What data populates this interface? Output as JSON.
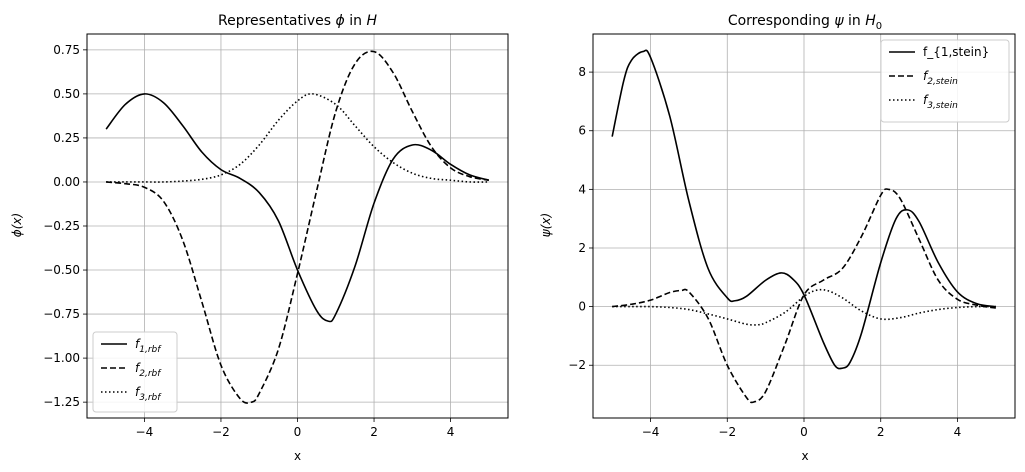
{
  "chart_data": [
    {
      "type": "line",
      "title": "Representatives ϕ in H",
      "xlabel": "x",
      "ylabel": "ϕ(x)",
      "xlim": [
        -5.5,
        5.5
      ],
      "ylim": [
        -1.34,
        0.84
      ],
      "xticks": [
        -4,
        -2,
        0,
        2,
        4
      ],
      "xtick_labels": [
        "−4",
        "−2",
        "0",
        "2",
        "4"
      ],
      "yticks": [
        -1.25,
        -1.0,
        -0.75,
        -0.5,
        -0.25,
        0.0,
        0.25,
        0.5,
        0.75
      ],
      "ytick_labels": [
        "−1.25",
        "−1.00",
        "−0.75",
        "−0.50",
        "−0.25",
        "0.00",
        "0.25",
        "0.50",
        "0.75"
      ],
      "grid": true,
      "legend_position": "lower-left",
      "series": [
        {
          "name": "f1,rbf",
          "style": "solid",
          "x": [
            -5,
            -4.5,
            -4,
            -3.5,
            -3,
            -2.5,
            -2,
            -1.5,
            -1,
            -0.5,
            0,
            0.5,
            0.8,
            1,
            1.5,
            2,
            2.5,
            3,
            3.5,
            4,
            4.5,
            5
          ],
          "y": [
            0.3,
            0.44,
            0.5,
            0.45,
            0.32,
            0.17,
            0.07,
            0.02,
            -0.06,
            -0.22,
            -0.5,
            -0.73,
            -0.79,
            -0.75,
            -0.48,
            -0.12,
            0.13,
            0.21,
            0.18,
            0.1,
            0.04,
            0.01
          ]
        },
        {
          "name": "f2,rbf",
          "style": "dashed",
          "x": [
            -5,
            -4.5,
            -4,
            -3.5,
            -3,
            -2.5,
            -2,
            -1.5,
            -1.2,
            -1,
            -0.5,
            0,
            0.5,
            1,
            1.5,
            2,
            2.5,
            3,
            3.5,
            4,
            4.5,
            5
          ],
          "y": [
            0.0,
            -0.01,
            -0.03,
            -0.11,
            -0.33,
            -0.68,
            -1.04,
            -1.23,
            -1.25,
            -1.2,
            -0.95,
            -0.52,
            -0.05,
            0.4,
            0.67,
            0.74,
            0.62,
            0.4,
            0.2,
            0.08,
            0.03,
            0.01
          ]
        },
        {
          "name": "f3,rbf",
          "style": "dotted",
          "x": [
            -5,
            -4.5,
            -4,
            -3.5,
            -3,
            -2.5,
            -2,
            -1.5,
            -1,
            -0.5,
            0,
            0.4,
            1,
            1.5,
            2,
            2.5,
            3,
            3.5,
            4,
            4.5,
            5
          ],
          "y": [
            0.0,
            0.0,
            0.0,
            0.0,
            0.005,
            0.015,
            0.04,
            0.1,
            0.21,
            0.35,
            0.46,
            0.5,
            0.44,
            0.32,
            0.2,
            0.11,
            0.05,
            0.02,
            0.01,
            0.0,
            0.0
          ]
        }
      ]
    },
    {
      "type": "line",
      "title": "Corresponding ψ in H₀",
      "xlabel": "x",
      "ylabel": "ψ(x)",
      "xlim": [
        -5.5,
        5.5
      ],
      "ylim": [
        -3.8,
        9.3
      ],
      "xticks": [
        -4,
        -2,
        0,
        2,
        4
      ],
      "xtick_labels": [
        "−4",
        "−2",
        "0",
        "2",
        "4"
      ],
      "yticks": [
        -2,
        0,
        2,
        4,
        6,
        8
      ],
      "ytick_labels": [
        "−2",
        "0",
        "2",
        "4",
        "6",
        "8"
      ],
      "grid": true,
      "legend_position": "upper-right",
      "series": [
        {
          "name": "f_{1,stein}",
          "style": "solid",
          "x": [
            -5,
            -4.7,
            -4.5,
            -4.2,
            -4,
            -3.5,
            -3,
            -2.5,
            -2,
            -1.8,
            -1.5,
            -1,
            -0.6,
            -0.3,
            0,
            0.5,
            0.8,
            1,
            1.2,
            1.5,
            2,
            2.4,
            2.7,
            3,
            3.5,
            4,
            4.5,
            5
          ],
          "y": [
            5.8,
            7.7,
            8.4,
            8.7,
            8.5,
            6.5,
            3.6,
            1.3,
            0.3,
            0.2,
            0.35,
            0.9,
            1.15,
            0.95,
            0.4,
            -1.2,
            -2.0,
            -2.1,
            -1.9,
            -0.9,
            1.5,
            3.0,
            3.3,
            2.9,
            1.5,
            0.5,
            0.1,
            0.0
          ]
        },
        {
          "name": "f2,stein",
          "style": "dashed",
          "x": [
            -5,
            -4.5,
            -4,
            -3.5,
            -3.2,
            -3,
            -2.5,
            -2,
            -1.5,
            -1.3,
            -1,
            -0.5,
            0,
            0.5,
            1,
            1.5,
            2,
            2.2,
            2.5,
            3,
            3.5,
            4,
            4.5,
            5
          ],
          "y": [
            0.0,
            0.08,
            0.22,
            0.48,
            0.55,
            0.5,
            -0.4,
            -2.0,
            -3.1,
            -3.25,
            -2.9,
            -1.3,
            0.4,
            0.9,
            1.3,
            2.4,
            3.8,
            4.0,
            3.7,
            2.3,
            0.9,
            0.25,
            0.05,
            -0.05
          ]
        },
        {
          "name": "f3,stein",
          "style": "dotted",
          "x": [
            -5,
            -4.5,
            -4,
            -3.5,
            -3,
            -2.5,
            -2,
            -1.5,
            -1.2,
            -1,
            -0.5,
            0,
            0.3,
            0.6,
            1,
            1.5,
            2,
            2.5,
            3,
            3.5,
            4,
            4.5,
            5
          ],
          "y": [
            0.0,
            0.0,
            0.0,
            -0.03,
            -0.1,
            -0.25,
            -0.42,
            -0.6,
            -0.62,
            -0.55,
            -0.2,
            0.35,
            0.55,
            0.55,
            0.3,
            -0.15,
            -0.42,
            -0.38,
            -0.22,
            -0.1,
            -0.03,
            0.0,
            0.0
          ]
        }
      ]
    }
  ]
}
